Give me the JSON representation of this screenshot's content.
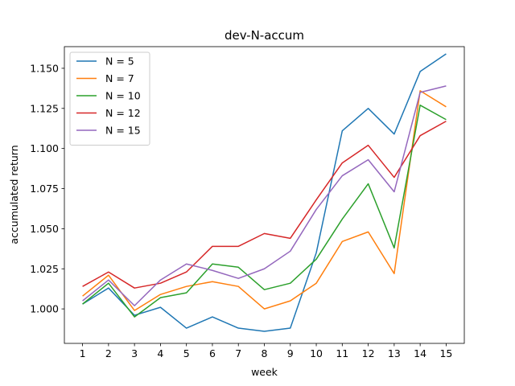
{
  "chart_data": {
    "type": "line",
    "title": "dev-N-accum",
    "xlabel": "week",
    "ylabel": "accumulated return",
    "x": [
      1,
      2,
      3,
      4,
      5,
      6,
      7,
      8,
      9,
      10,
      11,
      12,
      13,
      14,
      15
    ],
    "xlim": [
      0.3,
      15.7
    ],
    "ylim": [
      0.9785,
      1.1635
    ],
    "yticks": [
      "1.000",
      "1.025",
      "1.050",
      "1.075",
      "1.100",
      "1.125",
      "1.150"
    ],
    "grid": false,
    "legend_position": "top-left",
    "series": [
      {
        "name": "N = 5",
        "color": "#1f77b4",
        "values": [
          1.003,
          1.013,
          0.996,
          1.001,
          0.988,
          0.995,
          0.988,
          0.986,
          0.988,
          1.035,
          1.111,
          1.125,
          1.109,
          1.148,
          1.159
        ]
      },
      {
        "name": "N = 7",
        "color": "#ff7f0e",
        "values": [
          1.008,
          1.021,
          0.999,
          1.009,
          1.014,
          1.017,
          1.014,
          1.0,
          1.005,
          1.016,
          1.042,
          1.048,
          1.022,
          1.136,
          1.126
        ]
      },
      {
        "name": "N = 10",
        "color": "#2ca02c",
        "values": [
          1.003,
          1.016,
          0.995,
          1.007,
          1.01,
          1.028,
          1.026,
          1.012,
          1.016,
          1.031,
          1.056,
          1.078,
          1.038,
          1.127,
          1.118
        ]
      },
      {
        "name": "N = 12",
        "color": "#d62728",
        "values": [
          1.014,
          1.023,
          1.013,
          1.016,
          1.023,
          1.039,
          1.039,
          1.047,
          1.044,
          1.068,
          1.091,
          1.102,
          1.082,
          1.108,
          1.117
        ]
      },
      {
        "name": "N = 15",
        "color": "#9467bd",
        "values": [
          1.005,
          1.018,
          1.002,
          1.018,
          1.028,
          1.024,
          1.019,
          1.025,
          1.036,
          1.062,
          1.083,
          1.093,
          1.073,
          1.135,
          1.139
        ]
      }
    ]
  }
}
